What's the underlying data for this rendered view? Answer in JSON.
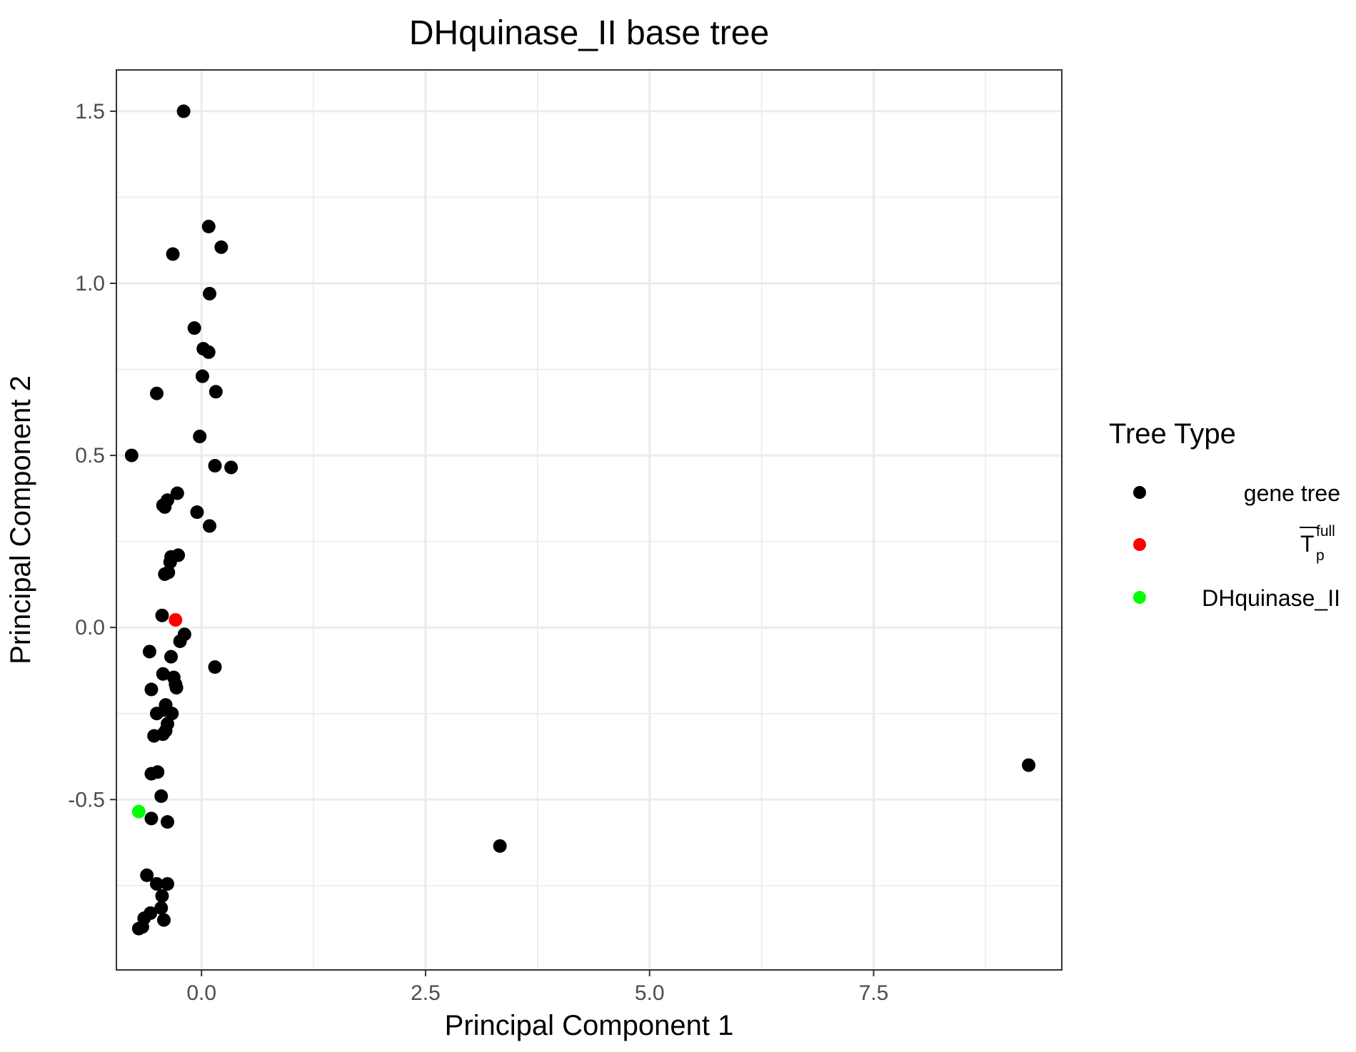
{
  "chart_data": {
    "type": "scatter",
    "title": "DHquinase_II base tree",
    "xlabel": "Principal Component 1",
    "ylabel": "Principal Component 2",
    "xlim": [
      -0.95,
      9.6
    ],
    "ylim": [
      -0.995,
      1.62
    ],
    "x_ticks": [
      {
        "value": 0.0,
        "label": "0.0"
      },
      {
        "value": 2.5,
        "label": "2.5"
      },
      {
        "value": 5.0,
        "label": "5.0"
      },
      {
        "value": 7.5,
        "label": "7.5"
      }
    ],
    "y_ticks": [
      {
        "value": -0.5,
        "label": "-0.5"
      },
      {
        "value": 0.0,
        "label": "0.0"
      },
      {
        "value": 0.5,
        "label": "0.5"
      },
      {
        "value": 1.0,
        "label": "1.0"
      },
      {
        "value": 1.5,
        "label": "1.5"
      }
    ],
    "grid": true,
    "legend": {
      "title": "Tree Type",
      "position": "right",
      "entries": [
        {
          "label": "gene tree",
          "color": "#000000"
        },
        {
          "label": "T",
          "sup": "full",
          "sub": "p",
          "overline": true,
          "color": "#ff0000"
        },
        {
          "label": "DHquinase_II",
          "color": "#00ff00"
        }
      ]
    },
    "series": [
      {
        "color": "#000000",
        "points": [
          [
            -0.2,
            1.5
          ],
          [
            0.08,
            1.165
          ],
          [
            0.22,
            1.105
          ],
          [
            -0.32,
            1.085
          ],
          [
            0.09,
            0.97
          ],
          [
            -0.08,
            0.87
          ],
          [
            0.02,
            0.81
          ],
          [
            0.08,
            0.8
          ],
          [
            0.01,
            0.73
          ],
          [
            0.16,
            0.685
          ],
          [
            -0.5,
            0.68
          ],
          [
            -0.02,
            0.555
          ],
          [
            -0.78,
            0.5
          ],
          [
            0.15,
            0.47
          ],
          [
            0.33,
            0.465
          ],
          [
            -0.27,
            0.39
          ],
          [
            -0.38,
            0.37
          ],
          [
            -0.43,
            0.355
          ],
          [
            -0.41,
            0.35
          ],
          [
            -0.05,
            0.335
          ],
          [
            0.09,
            0.295
          ],
          [
            -0.26,
            0.21
          ],
          [
            -0.34,
            0.205
          ],
          [
            -0.35,
            0.19
          ],
          [
            -0.37,
            0.16
          ],
          [
            -0.41,
            0.155
          ],
          [
            -0.44,
            0.035
          ],
          [
            -0.19,
            -0.02
          ],
          [
            -0.24,
            -0.04
          ],
          [
            -0.58,
            -0.07
          ],
          [
            -0.34,
            -0.085
          ],
          [
            0.15,
            -0.115
          ],
          [
            -0.43,
            -0.135
          ],
          [
            -0.31,
            -0.145
          ],
          [
            -0.29,
            -0.165
          ],
          [
            -0.28,
            -0.175
          ],
          [
            -0.56,
            -0.18
          ],
          [
            -0.5,
            -0.25
          ],
          [
            -0.33,
            -0.25
          ],
          [
            -0.41,
            -0.24
          ],
          [
            -0.4,
            -0.225
          ],
          [
            -0.38,
            -0.28
          ],
          [
            -0.4,
            -0.3
          ],
          [
            -0.43,
            -0.31
          ],
          [
            -0.53,
            -0.315
          ],
          [
            -0.56,
            -0.425
          ],
          [
            -0.49,
            -0.42
          ],
          [
            -0.45,
            -0.49
          ],
          [
            -0.56,
            -0.555
          ],
          [
            -0.38,
            -0.565
          ],
          [
            3.33,
            -0.635
          ],
          [
            -0.61,
            -0.72
          ],
          [
            -0.5,
            -0.745
          ],
          [
            -0.38,
            -0.745
          ],
          [
            -0.44,
            -0.78
          ],
          [
            -0.45,
            -0.815
          ],
          [
            -0.57,
            -0.83
          ],
          [
            -0.42,
            -0.85
          ],
          [
            -0.64,
            -0.845
          ],
          [
            -0.66,
            -0.87
          ],
          [
            -0.7,
            -0.875
          ],
          [
            9.23,
            -0.4
          ]
        ]
      },
      {
        "color": "#ff0000",
        "points": [
          [
            -0.29,
            0.022
          ]
        ]
      },
      {
        "color": "#00ff00",
        "points": [
          [
            -0.7,
            -0.535
          ]
        ]
      }
    ]
  }
}
